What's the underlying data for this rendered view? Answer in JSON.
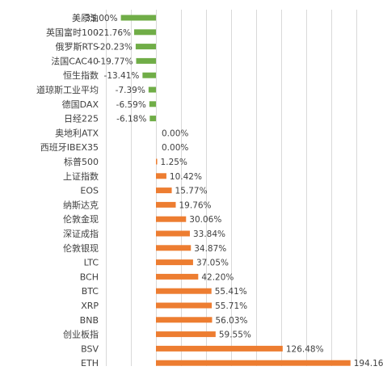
{
  "chart_data": {
    "type": "bar",
    "orientation": "horizontal",
    "title": "",
    "xlabel": "",
    "ylabel": "",
    "xlim": [
      -50,
      200
    ],
    "grid": true,
    "legend": "none",
    "colors": {
      "positive": "#ed7d31",
      "negative": "#70ad47",
      "grid": "#d9d9d9",
      "text": "#404040"
    },
    "categories": [
      "美原油",
      "英国富时100",
      "俄罗斯RTS",
      "法国CAC40",
      "恒生指数",
      "道琼斯工业平均",
      "德国DAX",
      "日经225",
      "奥地利ATX",
      "西班牙IBEX35",
      "标普500",
      "上证指数",
      "EOS",
      "纳斯达克",
      "伦敦金现",
      "深证成指",
      "伦敦银现",
      "LTC",
      "BCH",
      "BTC",
      "XRP",
      "BNB",
      "创业板指",
      "BSV",
      "ETH"
    ],
    "values": [
      -35.0,
      -21.76,
      -20.23,
      -19.77,
      -13.41,
      -7.39,
      -6.59,
      -6.18,
      0.0,
      0.0,
      1.25,
      10.42,
      15.77,
      19.76,
      30.06,
      33.84,
      34.87,
      37.05,
      42.2,
      55.41,
      55.71,
      56.03,
      59.55,
      126.48,
      194.16
    ],
    "value_labels": [
      "-35.00%",
      "-21.76%",
      "-20.23%",
      "-19.77%",
      "-13.41%",
      "-7.39%",
      "-6.59%",
      "-6.18%",
      "0.00%",
      "0.00%",
      "1.25%",
      "10.42%",
      "15.77%",
      "19.76%",
      "30.06%",
      "33.84%",
      "34.87%",
      "37.05%",
      "42.20%",
      "55.41%",
      "55.71%",
      "56.03%",
      "59.55%",
      "126.48%",
      "194.16%"
    ]
  }
}
